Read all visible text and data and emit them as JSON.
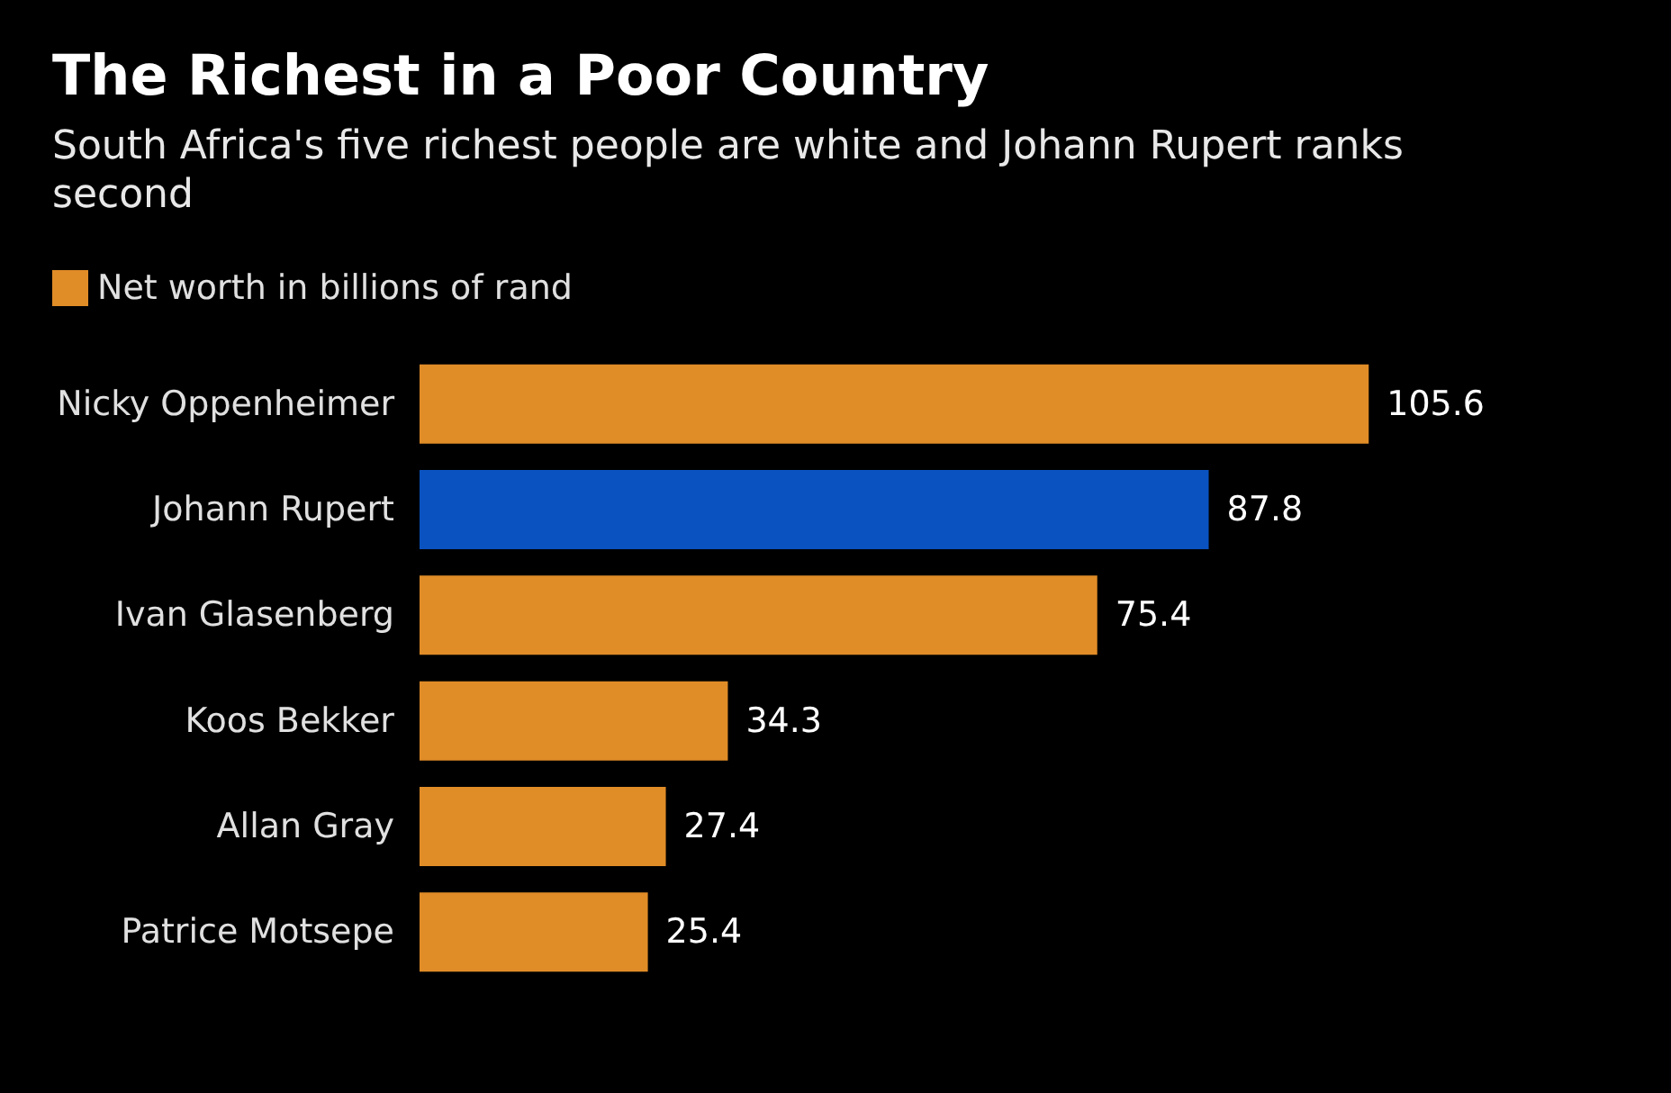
{
  "chart_data": {
    "type": "bar",
    "orientation": "horizontal",
    "title": "The Richest in a Poor Country",
    "subtitle": "South Africa's five richest people are white and Johann Rupert ranks second",
    "categories": [
      "Nicky Oppenheimer",
      "Johann Rupert",
      "Ivan Glasenberg",
      "Koos Bekker",
      "Allan Gray",
      "Patrice Motsepe"
    ],
    "series": [
      {
        "name": "Net worth in billions of rand",
        "color": "#e08c27",
        "colors": [
          "#e08c27",
          "#0a52c0",
          "#e08c27",
          "#e08c27",
          "#e08c27",
          "#e08c27"
        ],
        "values": [
          105.6,
          87.8,
          75.4,
          34.3,
          27.4,
          25.4
        ]
      }
    ],
    "data_labels": true,
    "legend": "top left"
  }
}
